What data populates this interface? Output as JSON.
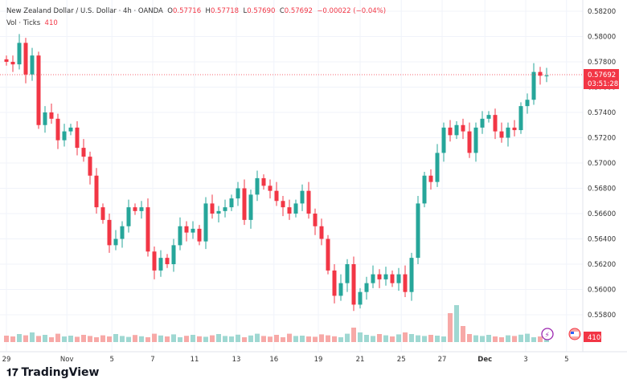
{
  "header": {
    "symbol": "New Zealand Dollar / U.S. Dollar",
    "interval": "4h",
    "source": "OANDA",
    "o_label": "O",
    "o": "0.57716",
    "h_label": "H",
    "h": "0.57718",
    "l_label": "L",
    "l": "0.57690",
    "c_label": "C",
    "c": "0.57692",
    "change": "−0.00022 (−0.04%)",
    "vol_label": "Vol · Ticks",
    "vol": "410"
  },
  "price_tag": {
    "price": "0.57692",
    "countdown": "03:51:28",
    "volume": "410"
  },
  "colors": {
    "up": "#26a69a",
    "down": "#f23645",
    "vol_up": "#9fd8d2",
    "vol_down": "#f7a9a7"
  },
  "chart_data": {
    "type": "candlestick",
    "ylim": [
      0.5572,
      0.5822
    ],
    "y_ticks": [
      "0.58200",
      "0.58000",
      "0.57800",
      "0.57600",
      "0.57400",
      "0.57200",
      "0.57000",
      "0.56800",
      "0.56600",
      "0.56400",
      "0.56200",
      "0.56000",
      "0.55800"
    ],
    "x_ticks": [
      {
        "label": "29",
        "bar": 0
      },
      {
        "label": "Nov",
        "bar": 9.4
      },
      {
        "label": "5",
        "bar": 16.4
      },
      {
        "label": "7",
        "bar": 22.75
      },
      {
        "label": "11",
        "bar": 29.25
      },
      {
        "label": "13",
        "bar": 35.75
      },
      {
        "label": "16",
        "bar": 41.6
      },
      {
        "label": "19",
        "bar": 48.5
      },
      {
        "label": "21",
        "bar": 55
      },
      {
        "label": "25",
        "bar": 61.4
      },
      {
        "label": "27",
        "bar": 67.75
      },
      {
        "label": "Dec",
        "bar": 74.4
      },
      {
        "label": "3",
        "bar": 80.75
      },
      {
        "label": "5",
        "bar": 87.1
      }
    ],
    "open_first": 0.5782,
    "closes": [
      0.578,
      0.5778,
      0.5795,
      0.577,
      0.5785,
      0.573,
      0.574,
      0.5735,
      0.5718,
      0.5725,
      0.5728,
      0.5712,
      0.5705,
      0.569,
      0.5665,
      0.5655,
      0.5635,
      0.564,
      0.565,
      0.5665,
      0.5662,
      0.5665,
      0.563,
      0.5615,
      0.5625,
      0.562,
      0.5635,
      0.565,
      0.5645,
      0.5648,
      0.5638,
      0.5668,
      0.566,
      0.5662,
      0.5665,
      0.5672,
      0.568,
      0.5655,
      0.5675,
      0.5688,
      0.5682,
      0.5678,
      0.567,
      0.5665,
      0.566,
      0.5668,
      0.5678,
      0.566,
      0.565,
      0.564,
      0.5615,
      0.5595,
      0.5605,
      0.562,
      0.5588,
      0.5598,
      0.5605,
      0.5612,
      0.5608,
      0.5612,
      0.5605,
      0.5612,
      0.5598,
      0.5625,
      0.5668,
      0.569,
      0.5685,
      0.5708,
      0.5728,
      0.5722,
      0.573,
      0.5725,
      0.5708,
      0.5728,
      0.5735,
      0.5738,
      0.5725,
      0.572,
      0.5728,
      0.5726,
      0.5745,
      0.575,
      0.5772,
      0.5769,
      0.57692
    ],
    "volumes": [
      400,
      350,
      500,
      420,
      600,
      380,
      450,
      300,
      520,
      350,
      400,
      330,
      450,
      380,
      300,
      420,
      350,
      500,
      380,
      320,
      440,
      360,
      300,
      520,
      410,
      350,
      480,
      300,
      390,
      450,
      360,
      330,
      420,
      500,
      380,
      350,
      460,
      300,
      410,
      520,
      380,
      340,
      450,
      300,
      520,
      380,
      400,
      350,
      330,
      480,
      420,
      360,
      300,
      520,
      900,
      600,
      450,
      380,
      500,
      420,
      350,
      480,
      600,
      500,
      420,
      380,
      450,
      400,
      350,
      1800,
      2300,
      1000,
      500,
      420,
      380,
      450,
      350,
      300,
      420,
      380,
      460,
      520,
      300,
      350,
      410
    ],
    "vol_max": 2500
  },
  "footer": {
    "brand": "TradingView"
  }
}
